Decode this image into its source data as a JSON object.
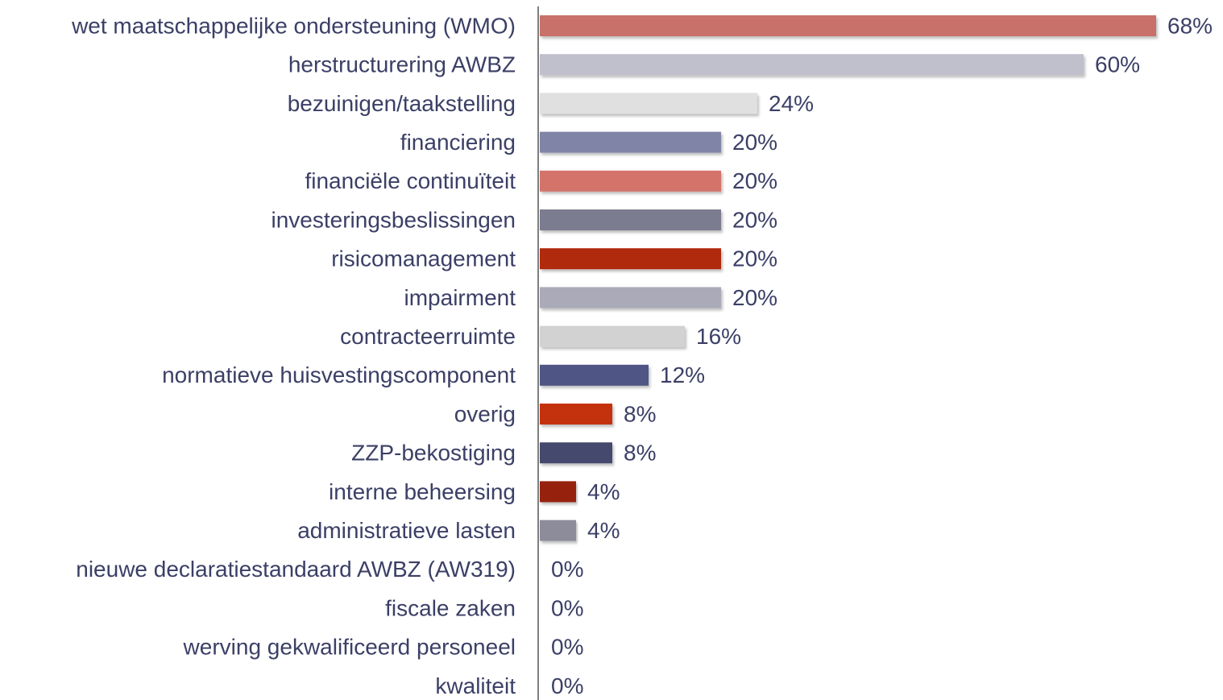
{
  "chart_data": {
    "type": "bar",
    "orientation": "horizontal",
    "categories": [
      "wet maatschappelijke ondersteuning (WMO)",
      "herstructurering AWBZ",
      "bezuinigen/taakstelling",
      "financiering",
      "financiële continuïteit",
      "investeringsbeslissingen",
      "risicomanagement",
      "impairment",
      "contracteerruimte",
      "normatieve huisvestingscomponent",
      "overig",
      "ZZP-bekostiging",
      "interne beheersing",
      "administratieve lasten",
      "nieuwe declaratiestandaard AWBZ (AW319)",
      "fiscale zaken",
      "werving gekwalificeerd personeel",
      "kwaliteit"
    ],
    "values": [
      68,
      60,
      24,
      20,
      20,
      20,
      20,
      20,
      16,
      12,
      8,
      8,
      4,
      4,
      0,
      0,
      0,
      0
    ],
    "value_labels": [
      "68%",
      "60%",
      "24%",
      "20%",
      "20%",
      "20%",
      "20%",
      "20%",
      "16%",
      "12%",
      "8%",
      "8%",
      "4%",
      "4%",
      "0%",
      "0%",
      "0%",
      "0%"
    ],
    "colors": [
      "#c8706a",
      "#c0c0cc",
      "#e0e0e0",
      "#8084a6",
      "#d4736a",
      "#7b7b90",
      "#b02a10",
      "#aaaab8",
      "#d2d2d2",
      "#505585",
      "#c43010",
      "#444a6e",
      "#962010",
      "#8c8c9a",
      null,
      null,
      null,
      null
    ]
  }
}
